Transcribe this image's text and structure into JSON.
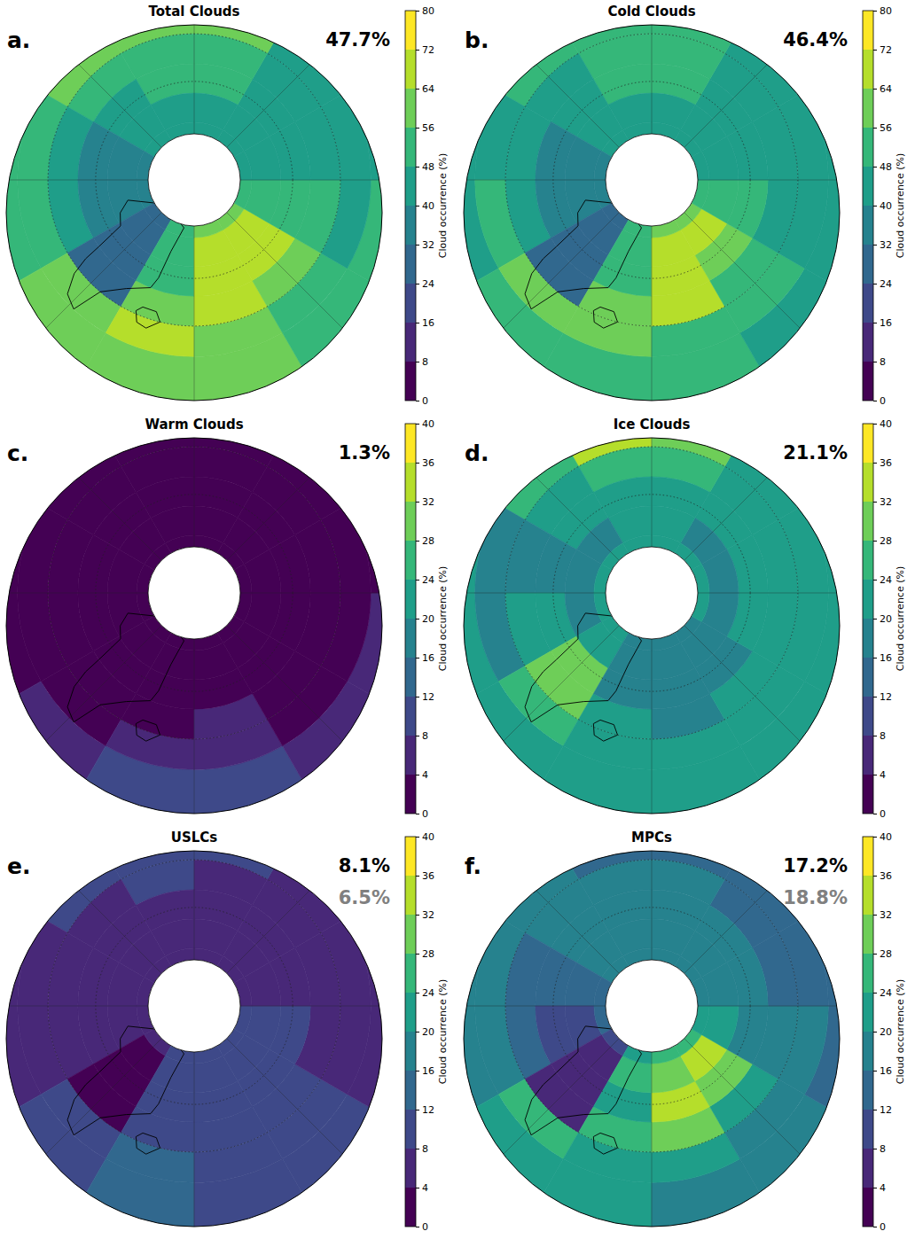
{
  "chart_data": [
    {
      "type": "heatmap",
      "panel_label": "a.",
      "title": "Total Clouds",
      "annotations": [
        {
          "value": 47.7,
          "label": "47.7%",
          "color": "#000000"
        }
      ],
      "lat_edges": [
        50,
        60,
        65,
        70,
        75,
        80,
        82
      ],
      "lon_edges": [
        -180,
        -150,
        -120,
        -90,
        -60,
        -30,
        0,
        30,
        60,
        90,
        120,
        150,
        180
      ],
      "cells": [
        [
          58,
          56,
          50,
          52,
          60,
          62,
          60,
          54,
          48,
          46,
          48,
          58
        ],
        [
          58,
          56,
          48,
          50,
          62,
          64,
          58,
          52,
          46,
          44,
          46,
          56
        ],
        [
          52,
          48,
          42,
          40,
          30,
          62,
          66,
          56,
          48,
          44,
          44,
          50
        ],
        [
          48,
          44,
          38,
          34,
          28,
          52,
          70,
          64,
          50,
          44,
          44,
          48
        ],
        [
          46,
          42,
          36,
          34,
          28,
          54,
          66,
          68,
          52,
          46,
          44,
          46
        ],
        [
          46,
          42,
          38,
          34,
          30,
          50,
          58,
          56,
          50,
          46,
          44,
          46
        ]
      ],
      "colorbar": {
        "label": "Cloud occurrence (%)",
        "range": [
          0,
          80
        ],
        "ticks": [
          0,
          8,
          16,
          24,
          32,
          40,
          48,
          56,
          64,
          72,
          80
        ]
      }
    },
    {
      "type": "heatmap",
      "panel_label": "b.",
      "title": "Cold Clouds",
      "annotations": [
        {
          "value": 46.4,
          "label": "46.4%",
          "color": "#000000"
        }
      ],
      "lat_edges": [
        50,
        60,
        65,
        70,
        75,
        80,
        82
      ],
      "lon_edges": [
        -180,
        -150,
        -120,
        -90,
        -60,
        -30,
        0,
        30,
        60,
        90,
        120,
        150,
        180
      ],
      "cells": [
        [
          50,
          48,
          44,
          46,
          54,
          52,
          48,
          44,
          40,
          40,
          42,
          48
        ],
        [
          54,
          52,
          46,
          48,
          58,
          58,
          52,
          48,
          44,
          42,
          44,
          52
        ],
        [
          51,
          47,
          42,
          40,
          30,
          60,
          64,
          55,
          47,
          44,
          44,
          49
        ],
        [
          48,
          44,
          38,
          34,
          28,
          52,
          69,
          63,
          50,
          44,
          44,
          48
        ],
        [
          45,
          41,
          36,
          34,
          28,
          53,
          65,
          67,
          51,
          45,
          44,
          45
        ],
        [
          46,
          42,
          38,
          34,
          30,
          50,
          58,
          56,
          50,
          46,
          44,
          46
        ]
      ],
      "colorbar": {
        "label": "Cloud occurrence (%)",
        "range": [
          0,
          80
        ],
        "ticks": [
          0,
          8,
          16,
          24,
          32,
          40,
          48,
          56,
          64,
          72,
          80
        ]
      }
    },
    {
      "type": "heatmap",
      "panel_label": "c.",
      "title": "Warm Clouds",
      "annotations": [
        {
          "value": 1.3,
          "label": "1.3%",
          "color": "#000000"
        }
      ],
      "lat_edges": [
        50,
        60,
        65,
        70,
        75,
        80,
        82
      ],
      "lon_edges": [
        -180,
        -150,
        -120,
        -90,
        -60,
        -30,
        0,
        30,
        60,
        90,
        120,
        150,
        180
      ],
      "cells": [
        [
          6,
          5,
          3,
          3,
          4,
          10,
          8,
          6,
          4,
          3,
          3,
          5
        ],
        [
          2,
          2,
          1,
          1,
          2,
          6,
          5,
          3,
          1,
          1,
          1,
          2
        ],
        [
          1,
          1,
          0,
          0,
          0,
          3,
          4,
          2,
          1,
          0,
          0,
          1
        ],
        [
          0,
          0,
          0,
          0,
          0,
          1,
          2,
          1,
          0,
          0,
          0,
          0
        ],
        [
          0,
          0,
          0,
          0,
          0,
          0,
          1,
          0,
          0,
          0,
          0,
          0
        ],
        [
          0,
          0,
          0,
          0,
          0,
          0,
          0,
          0,
          0,
          0,
          0,
          0
        ]
      ],
      "colorbar": {
        "label": "Cloud occurrence (%)",
        "range": [
          0,
          40
        ],
        "ticks": [
          0,
          4,
          8,
          12,
          16,
          20,
          24,
          28,
          32,
          36,
          40
        ]
      }
    },
    {
      "type": "heatmap",
      "panel_label": "d.",
      "title": "Ice Clouds",
      "annotations": [
        {
          "value": 21.1,
          "label": "21.1%",
          "color": "#000000"
        }
      ],
      "lat_edges": [
        50,
        60,
        65,
        70,
        75,
        80,
        82
      ],
      "lon_edges": [
        -180,
        -150,
        -120,
        -90,
        -60,
        -30,
        0,
        30,
        60,
        90,
        120,
        150,
        180
      ],
      "cells": [
        [
          30,
          24,
          20,
          20,
          22,
          20,
          20,
          20,
          20,
          20,
          22,
          28
        ],
        [
          32,
          24,
          18,
          18,
          24,
          20,
          20,
          20,
          20,
          20,
          22,
          28
        ],
        [
          26,
          22,
          18,
          20,
          30,
          22,
          18,
          20,
          22,
          22,
          22,
          24
        ],
        [
          22,
          20,
          18,
          20,
          30,
          18,
          16,
          18,
          20,
          20,
          20,
          22
        ],
        [
          20,
          18,
          18,
          18,
          22,
          16,
          16,
          16,
          18,
          18,
          18,
          20
        ],
        [
          20,
          20,
          20,
          20,
          20,
          18,
          18,
          18,
          20,
          20,
          20,
          20
        ]
      ],
      "colorbar": {
        "label": "Cloud occurrence (%)",
        "range": [
          0,
          40
        ],
        "ticks": [
          0,
          4,
          8,
          12,
          16,
          20,
          24,
          28,
          32,
          36,
          40
        ]
      }
    },
    {
      "type": "heatmap",
      "panel_label": "e.",
      "title": "USLCs",
      "annotations": [
        {
          "value": 8.1,
          "label": "8.1%",
          "color": "#000000"
        },
        {
          "value": 6.5,
          "label": "6.5%",
          "color": "#808080"
        }
      ],
      "lat_edges": [
        50,
        60,
        65,
        70,
        75,
        80,
        82
      ],
      "lon_edges": [
        -180,
        -150,
        -120,
        -90,
        -60,
        -30,
        0,
        30,
        60,
        90,
        120,
        150,
        180
      ],
      "cells": [
        [
          10,
          8,
          6,
          6,
          8,
          12,
          10,
          8,
          6,
          6,
          6,
          8
        ],
        [
          10,
          8,
          6,
          6,
          8,
          12,
          10,
          8,
          6,
          6,
          6,
          8
        ],
        [
          8,
          6,
          6,
          5,
          2,
          10,
          10,
          9,
          7,
          6,
          6,
          7
        ],
        [
          7,
          6,
          6,
          5,
          2,
          8,
          11,
          10,
          8,
          6,
          6,
          6
        ],
        [
          6,
          6,
          6,
          6,
          3,
          8,
          10,
          10,
          8,
          7,
          6,
          6
        ],
        [
          6,
          6,
          6,
          6,
          5,
          8,
          9,
          9,
          8,
          7,
          6,
          6
        ]
      ],
      "colorbar": {
        "label": "Cloud occurrence (%)",
        "range": [
          0,
          40
        ],
        "ticks": [
          0,
          4,
          8,
          12,
          16,
          20,
          24,
          28,
          32,
          36,
          40
        ]
      }
    },
    {
      "type": "heatmap",
      "panel_label": "f.",
      "title": "MPCs",
      "annotations": [
        {
          "value": 17.2,
          "label": "17.2%",
          "color": "#000000"
        },
        {
          "value": 18.8,
          "label": "18.8%",
          "color": "#808080"
        }
      ],
      "lat_edges": [
        50,
        60,
        65,
        70,
        75,
        80,
        82
      ],
      "lon_edges": [
        -180,
        -150,
        -120,
        -90,
        -60,
        -30,
        0,
        30,
        60,
        90,
        120,
        150,
        180
      ],
      "cells": [
        [
          12,
          16,
          16,
          16,
          22,
          20,
          18,
          16,
          14,
          12,
          12,
          12
        ],
        [
          14,
          18,
          16,
          18,
          24,
          22,
          20,
          18,
          16,
          14,
          14,
          14
        ],
        [
          16,
          16,
          14,
          12,
          6,
          24,
          28,
          20,
          16,
          14,
          14,
          16
        ],
        [
          18,
          16,
          12,
          10,
          6,
          22,
          32,
          28,
          18,
          16,
          16,
          18
        ],
        [
          18,
          16,
          12,
          10,
          6,
          26,
          30,
          32,
          20,
          18,
          16,
          18
        ],
        [
          18,
          16,
          14,
          12,
          8,
          22,
          26,
          24,
          20,
          18,
          16,
          18
        ]
      ],
      "colorbar": {
        "label": "Cloud occurrence (%)",
        "range": [
          0,
          40
        ],
        "ticks": [
          0,
          4,
          8,
          12,
          16,
          20,
          24,
          28,
          32,
          36,
          40
        ]
      }
    }
  ]
}
